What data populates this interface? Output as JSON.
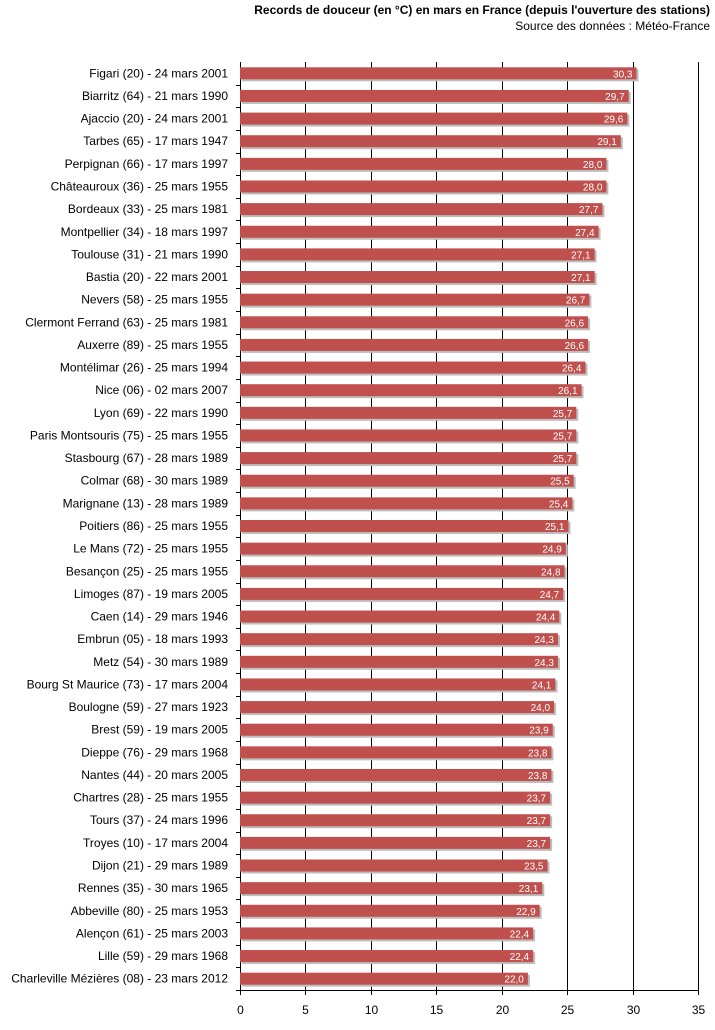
{
  "chart_data": {
    "type": "bar",
    "orientation": "horizontal",
    "title": "Records de douceur (en °C) en mars en France (depuis l'ouverture des stations)",
    "subtitle": "Source des données : Météo-France",
    "xlabel": "",
    "ylabel": "",
    "xlim": [
      0,
      35
    ],
    "xticks": [
      0,
      5,
      10,
      15,
      20,
      25,
      30,
      35
    ],
    "grid": true,
    "bar_color": "#c0504d",
    "categories": [
      "Figari (20) - 24 mars 2001",
      "Biarritz (64) - 21 mars 1990",
      "Ajaccio (20) - 24 mars 2001",
      "Tarbes (65) - 17 mars 1947",
      "Perpignan (66) - 17 mars 1997",
      "Châteauroux (36) - 25 mars 1955",
      "Bordeaux (33) - 25 mars 1981",
      "Montpellier (34) - 18 mars 1997",
      "Toulouse (31) - 21 mars 1990",
      "Bastia (20) - 22 mars 2001",
      "Nevers (58) - 25 mars 1955",
      "Clermont Ferrand (63) - 25 mars 1981",
      "Auxerre (89) - 25 mars 1955",
      "Montélimar (26) - 25 mars 1994",
      "Nice (06) - 02 mars 2007",
      "Lyon (69) - 22 mars 1990",
      "Paris Montsouris (75) - 25 mars 1955",
      "Stasbourg (67) - 28 mars 1989",
      "Colmar (68) - 30 mars 1989",
      "Marignane (13) - 28 mars 1989",
      "Poitiers (86) - 25 mars 1955",
      "Le Mans (72) - 25 mars 1955",
      "Besançon (25) - 25 mars 1955",
      "Limoges (87) - 19 mars 2005",
      "Caen (14) - 29 mars 1946",
      "Embrun (05) - 18 mars 1993",
      "Metz (54) - 30 mars 1989",
      "Bourg St Maurice (73) - 17 mars 2004",
      "Boulogne (59) - 27 mars 1923",
      "Brest (59) - 19 mars 2005",
      "Dieppe (76) - 29 mars 1968",
      "Nantes (44) - 20 mars 2005",
      "Chartres (28) - 25 mars 1955",
      "Tours (37) - 24 mars 1996",
      "Troyes (10) - 17 mars 2004",
      "Dijon (21) - 29 mars 1989",
      "Rennes (35) - 30 mars 1965",
      "Abbeville (80) - 25 mars 1953",
      "Alençon (61) - 25 mars 2003",
      "Lille (59) - 29 mars 1968",
      "Charleville Mézières (08) - 23 mars 2012"
    ],
    "values": [
      30.3,
      29.7,
      29.6,
      29.1,
      28.0,
      28.0,
      27.7,
      27.4,
      27.1,
      27.1,
      26.7,
      26.6,
      26.6,
      26.4,
      26.1,
      25.7,
      25.7,
      25.7,
      25.5,
      25.4,
      25.1,
      24.9,
      24.8,
      24.7,
      24.4,
      24.3,
      24.3,
      24.1,
      24.0,
      23.9,
      23.8,
      23.8,
      23.7,
      23.7,
      23.7,
      23.5,
      23.1,
      22.9,
      22.4,
      22.4,
      22.0
    ],
    "data_labels": [
      "30,3",
      "29,7",
      "29,6",
      "29,1",
      "28,0",
      "28,0",
      "27,7",
      "27,4",
      "27,1",
      "27,1",
      "26,7",
      "26,6",
      "26,6",
      "26,4",
      "26,1",
      "25,7",
      "25,7",
      "25,7",
      "25,5",
      "25,4",
      "25,1",
      "24,9",
      "24,8",
      "24,7",
      "24,4",
      "24,3",
      "24,3",
      "24,1",
      "24,0",
      "23,9",
      "23,8",
      "23,8",
      "23,7",
      "23,7",
      "23,7",
      "23,5",
      "23,1",
      "22,9",
      "22,4",
      "22,4",
      "22,0"
    ]
  }
}
